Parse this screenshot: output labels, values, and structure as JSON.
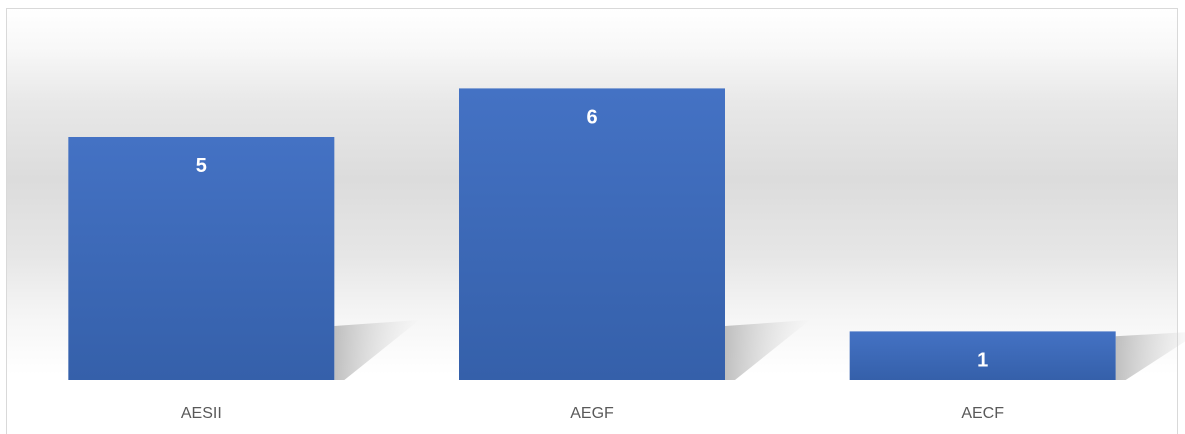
{
  "chart_data": {
    "type": "bar",
    "categories": [
      "AESII",
      "AEGF",
      "AECF"
    ],
    "values": [
      5,
      6,
      1
    ],
    "data_labels": [
      "5",
      "6",
      "1"
    ],
    "title": "",
    "xlabel": "",
    "ylabel": "",
    "ylim": [
      0,
      6
    ],
    "grid": false,
    "legend": "none",
    "colors": {
      "bar_top": "#4472C4",
      "bar_bottom": "#3560AA",
      "label_text": "#FFFFFF",
      "category_text": "#595959"
    }
  }
}
